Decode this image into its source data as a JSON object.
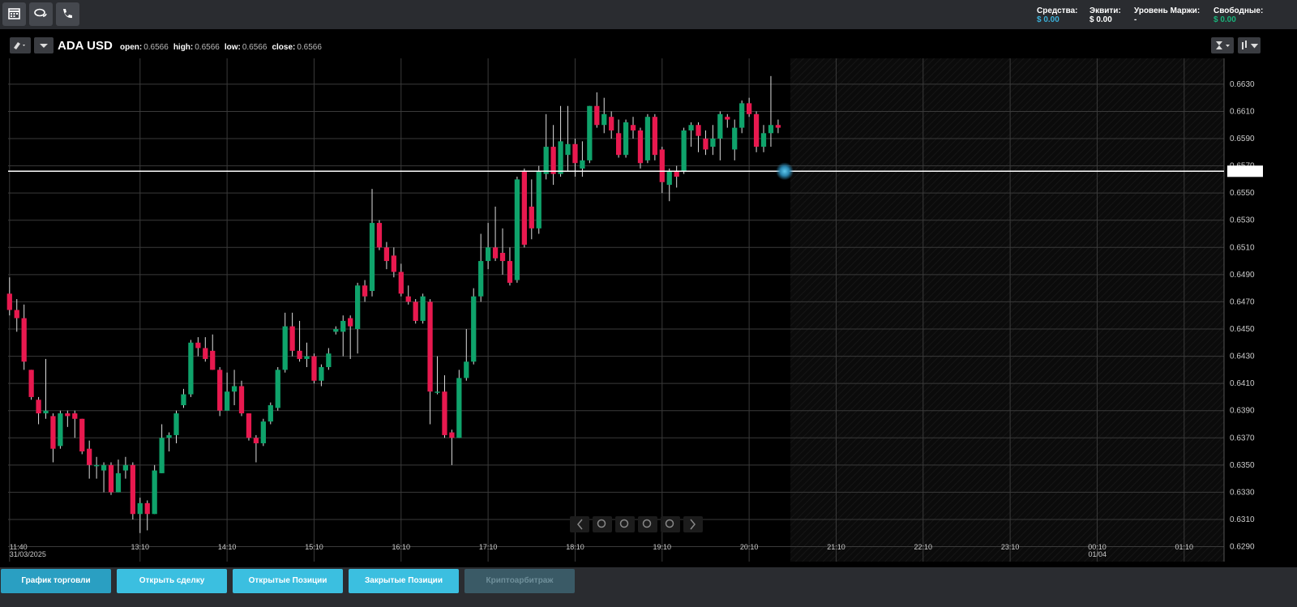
{
  "top_bar": {
    "stats": [
      {
        "label": "Средства:",
        "value": "$ 0.00"
      },
      {
        "label": "Эквити:",
        "value": "$ 0.00"
      },
      {
        "label": "Уровень Маржи:",
        "value": "-"
      },
      {
        "label": "Свободные:",
        "value": "$ 0.00"
      }
    ]
  },
  "chart_header": {
    "symbol": "ADA USD",
    "ohlc": [
      {
        "label": "open:",
        "value": 0.6566
      },
      {
        "label": "high:",
        "value": 0.6566
      },
      {
        "label": "low:",
        "value": 0.6566
      },
      {
        "label": "close:",
        "value": 0.6566
      }
    ]
  },
  "chart_data": {
    "type": "candlestick",
    "x": [
      700,
      705,
      710,
      715,
      720,
      725,
      730,
      735,
      740,
      745,
      750,
      755,
      760,
      765,
      770,
      775,
      780,
      785,
      790,
      795,
      800,
      805,
      810,
      815,
      820,
      825,
      830,
      835,
      840,
      845,
      850,
      855,
      860,
      865,
      870,
      875,
      880,
      885,
      890,
      895,
      900,
      905,
      910,
      915,
      920,
      925,
      930,
      935,
      940,
      945,
      950,
      955,
      960,
      965,
      970,
      975,
      980,
      985,
      990,
      995,
      1000,
      1005,
      1010,
      1015,
      1020,
      1025,
      1030,
      1035,
      1040,
      1045,
      1050,
      1055,
      1060,
      1065,
      1070,
      1075,
      1080,
      1085,
      1090,
      1095,
      1100,
      1105,
      1110,
      1115,
      1120,
      1125,
      1130,
      1135,
      1140,
      1145,
      1150,
      1155,
      1160,
      1165,
      1170,
      1175,
      1180,
      1185,
      1190,
      1195,
      1200,
      1205,
      1210,
      1215,
      1220,
      1225,
      1230
    ],
    "open": [
      0.6476,
      0.6464,
      0.6458,
      0.642,
      0.6398,
      0.6388,
      0.6386,
      0.6364,
      0.6388,
      0.6388,
      0.6384,
      0.6362,
      0.635,
      0.6346,
      0.635,
      0.633,
      0.6346,
      0.635,
      0.6314,
      0.6322,
      0.6314,
      0.6344,
      0.637,
      0.6372,
      0.6394,
      0.6402,
      0.644,
      0.6436,
      0.6434,
      0.642,
      0.639,
      0.6404,
      0.6408,
      0.6388,
      0.637,
      0.6366,
      0.6382,
      0.6392,
      0.642,
      0.6452,
      0.6434,
      0.6428,
      0.643,
      0.6412,
      0.6422,
      0.6448,
      0.6448,
      0.6458,
      0.645,
      0.6482,
      0.6478,
      0.6528,
      0.651,
      0.6504,
      0.6492,
      0.6474,
      0.647,
      0.6456,
      0.647,
      0.6404,
      0.6404,
      0.6374,
      0.637,
      0.6414,
      0.6426,
      0.6474,
      0.65,
      0.651,
      0.6506,
      0.65,
      0.6486,
      0.6566,
      0.654,
      0.6524,
      0.6564,
      0.6584,
      0.6564,
      0.6578,
      0.6586,
      0.6568,
      0.6574,
      0.6614,
      0.66,
      0.6606,
      0.6594,
      0.6578,
      0.66,
      0.6596,
      0.6574,
      0.6606,
      0.6582,
      0.6556,
      0.6566,
      0.6566,
      0.6596,
      0.66,
      0.659,
      0.6584,
      0.659,
      0.6606,
      0.6582,
      0.6598,
      0.6616,
      0.6608,
      0.6584,
      0.6594,
      0.66
    ],
    "high": [
      0.6488,
      0.6472,
      0.6468,
      0.642,
      0.64,
      0.6428,
      0.6388,
      0.639,
      0.639,
      0.639,
      0.6384,
      0.6368,
      0.6356,
      0.6352,
      0.6352,
      0.6354,
      0.6356,
      0.6352,
      0.6326,
      0.6324,
      0.635,
      0.638,
      0.6374,
      0.639,
      0.6406,
      0.6442,
      0.6444,
      0.6444,
      0.6446,
      0.6422,
      0.6418,
      0.642,
      0.6412,
      0.6388,
      0.6372,
      0.6384,
      0.6396,
      0.6422,
      0.6462,
      0.6462,
      0.6456,
      0.644,
      0.6432,
      0.6424,
      0.6436,
      0.6452,
      0.646,
      0.646,
      0.6484,
      0.6486,
      0.6553,
      0.653,
      0.6514,
      0.651,
      0.6498,
      0.6482,
      0.6472,
      0.6476,
      0.6472,
      0.643,
      0.6416,
      0.6376,
      0.642,
      0.645,
      0.648,
      0.652,
      0.6528,
      0.654,
      0.6524,
      0.651,
      0.6562,
      0.6568,
      0.656,
      0.657,
      0.6608,
      0.66,
      0.6614,
      0.6614,
      0.659,
      0.6588,
      0.6614,
      0.6624,
      0.662,
      0.661,
      0.6604,
      0.6604,
      0.6606,
      0.6598,
      0.6608,
      0.6608,
      0.6584,
      0.6568,
      0.657,
      0.6598,
      0.6602,
      0.6602,
      0.6596,
      0.66,
      0.661,
      0.6608,
      0.6604,
      0.6618,
      0.662,
      0.661,
      0.66,
      0.6636,
      0.6604
    ],
    "low": [
      0.646,
      0.6448,
      0.642,
      0.6398,
      0.638,
      0.6384,
      0.6352,
      0.6362,
      0.6378,
      0.637,
      0.6358,
      0.634,
      0.634,
      0.633,
      0.6328,
      0.633,
      0.634,
      0.631,
      0.63,
      0.6302,
      0.6314,
      0.6344,
      0.636,
      0.6366,
      0.6392,
      0.64,
      0.643,
      0.6426,
      0.642,
      0.6386,
      0.639,
      0.6394,
      0.6386,
      0.6368,
      0.6352,
      0.6364,
      0.638,
      0.639,
      0.6418,
      0.643,
      0.6426,
      0.6422,
      0.641,
      0.6408,
      0.642,
      0.6446,
      0.643,
      0.6428,
      0.6432,
      0.647,
      0.6474,
      0.6508,
      0.6494,
      0.6488,
      0.6474,
      0.6468,
      0.6454,
      0.6454,
      0.638,
      0.6402,
      0.637,
      0.635,
      0.637,
      0.6412,
      0.6424,
      0.647,
      0.6494,
      0.65,
      0.649,
      0.6482,
      0.6484,
      0.651,
      0.6516,
      0.652,
      0.656,
      0.6556,
      0.6562,
      0.6566,
      0.6562,
      0.6562,
      0.6572,
      0.6598,
      0.6594,
      0.659,
      0.6576,
      0.6576,
      0.659,
      0.6568,
      0.6572,
      0.6574,
      0.655,
      0.6544,
      0.6554,
      0.6564,
      0.6584,
      0.658,
      0.6578,
      0.6578,
      0.6574,
      0.6598,
      0.6574,
      0.6594,
      0.6606,
      0.658,
      0.658,
      0.6584,
      0.6594
    ],
    "close": [
      0.6464,
      0.6458,
      0.6426,
      0.64,
      0.6388,
      0.639,
      0.6362,
      0.6388,
      0.6386,
      0.6384,
      0.636,
      0.635,
      0.635,
      0.635,
      0.633,
      0.6344,
      0.635,
      0.6314,
      0.6322,
      0.6314,
      0.6346,
      0.637,
      0.6372,
      0.6388,
      0.6402,
      0.644,
      0.6436,
      0.6428,
      0.642,
      0.639,
      0.6404,
      0.6408,
      0.6388,
      0.637,
      0.6366,
      0.6382,
      0.6394,
      0.642,
      0.6452,
      0.6434,
      0.6428,
      0.643,
      0.6412,
      0.6422,
      0.6432,
      0.645,
      0.6456,
      0.6452,
      0.6482,
      0.6474,
      0.6528,
      0.651,
      0.65,
      0.6492,
      0.6476,
      0.647,
      0.6456,
      0.6474,
      0.6404,
      0.6404,
      0.6372,
      0.637,
      0.6414,
      0.6426,
      0.6474,
      0.65,
      0.651,
      0.6502,
      0.65,
      0.6484,
      0.656,
      0.6512,
      0.6524,
      0.6566,
      0.6584,
      0.6564,
      0.6588,
      0.6586,
      0.6572,
      0.6574,
      0.6614,
      0.66,
      0.6608,
      0.6596,
      0.6578,
      0.6602,
      0.6596,
      0.6572,
      0.6606,
      0.6578,
      0.6558,
      0.6566,
      0.6562,
      0.6596,
      0.66,
      0.6592,
      0.6582,
      0.659,
      0.6608,
      0.6604,
      0.6598,
      0.6616,
      0.6608,
      0.6584,
      0.6594,
      0.66,
      0.6598
    ],
    "up_color": "#0fa36b",
    "down_color": "#e8194f",
    "last_price": 0.6566,
    "xlim": [
      699,
      1537.5
    ],
    "xticks": [
      {
        "value": 700,
        "label": "11:40",
        "date": "31/03/2025"
      },
      {
        "value": 790,
        "label": "13:10"
      },
      {
        "value": 850,
        "label": "14:10"
      },
      {
        "value": 910,
        "label": "15:10"
      },
      {
        "value": 970,
        "label": "16:10"
      },
      {
        "value": 1030,
        "label": "17:10"
      },
      {
        "value": 1090,
        "label": "18:10"
      },
      {
        "value": 1150,
        "label": "19:10"
      },
      {
        "value": 1210,
        "label": "20:10"
      },
      {
        "value": 1270,
        "label": "21:10"
      },
      {
        "value": 1330,
        "label": "22:10"
      },
      {
        "value": 1390,
        "label": "23:10"
      },
      {
        "value": 1450,
        "label": "00:10",
        "date": "01/04"
      },
      {
        "value": 1510,
        "label": "01:10"
      }
    ],
    "ylim": [
      0.6279,
      0.6649
    ],
    "yticks": [
      {
        "value": 0.663,
        "label": "0.6630"
      },
      {
        "value": 0.661,
        "label": "0.6610"
      },
      {
        "value": 0.659,
        "label": "0.6590"
      },
      {
        "value": 0.657,
        "label": "0.6570"
      },
      {
        "value": 0.655,
        "label": "0.6550"
      },
      {
        "value": 0.653,
        "label": "0.6530"
      },
      {
        "value": 0.651,
        "label": "0.6510"
      },
      {
        "value": 0.649,
        "label": "0.6490"
      },
      {
        "value": 0.647,
        "label": "0.6470"
      },
      {
        "value": 0.645,
        "label": "0.6450"
      },
      {
        "value": 0.643,
        "label": "0.6430"
      },
      {
        "value": 0.641,
        "label": "0.6410"
      },
      {
        "value": 0.639,
        "label": "0.6390"
      },
      {
        "value": 0.637,
        "label": "0.6370"
      },
      {
        "value": 0.635,
        "label": "0.6350"
      },
      {
        "value": 0.633,
        "label": "0.6330"
      },
      {
        "value": 0.631,
        "label": "0.6310"
      },
      {
        "value": 0.629,
        "label": "0.6290"
      }
    ],
    "grid": true
  },
  "bottom_tabs": [
    "График торговли",
    "Открыть сделку",
    "Открытые Позиции",
    "Закрытые Позиции",
    "Криптоарбитраж"
  ]
}
